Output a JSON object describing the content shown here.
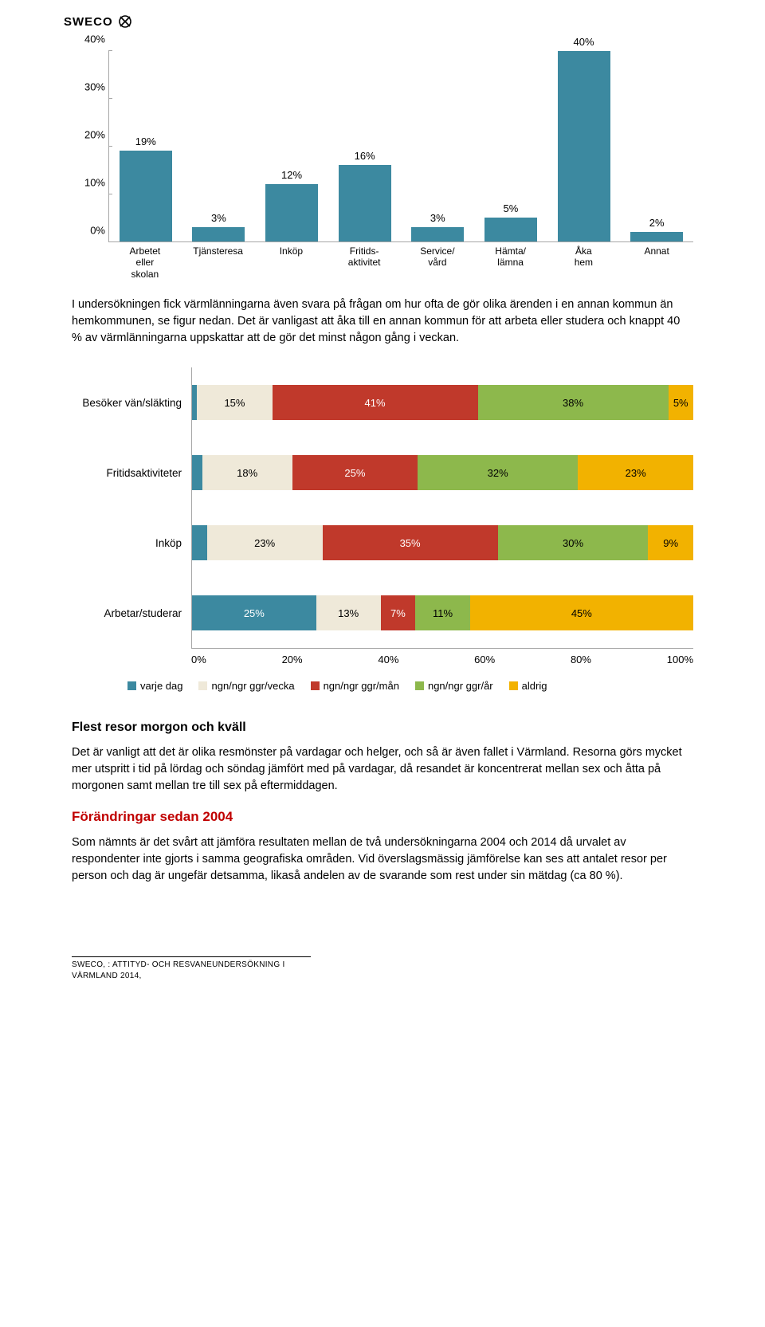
{
  "logo": {
    "text": "SWECO"
  },
  "bar_chart": {
    "type": "bar",
    "ymax": 40,
    "ytick_step": 10,
    "bar_color": "#3c89a0",
    "axis_color": "#a6a6a6",
    "label_fontsize": 13,
    "categories": [
      {
        "label": "Arbetet eller skolan",
        "value": 19,
        "display": "19%"
      },
      {
        "label": "Tjänsteresa",
        "value": 3,
        "display": "3%"
      },
      {
        "label": "Inköp",
        "value": 12,
        "display": "12%"
      },
      {
        "label": "Fritids- aktivitet",
        "value": 16,
        "display": "16%"
      },
      {
        "label": "Service/ vård",
        "value": 3,
        "display": "3%"
      },
      {
        "label": "Hämta/ lämna",
        "value": 5,
        "display": "5%"
      },
      {
        "label": "Åka hem",
        "value": 40,
        "display": "40%"
      },
      {
        "label": "Annat",
        "value": 2,
        "display": "2%"
      }
    ]
  },
  "para1": "I undersökningen fick värmlänningarna även svara på frågan om hur ofta de gör olika ärenden i en annan kommun än hemkommunen, se figur nedan. Det är vanligast att åka till en annan kommun för att arbeta eller studera och knappt 40 % av värmlänningarna uppskattar att de gör det minst någon gång i veckan.",
  "stacked_chart": {
    "type": "stacked_bar_horizontal",
    "xmax": 100,
    "xtick_step": 20,
    "xticks": [
      "0%",
      "20%",
      "40%",
      "60%",
      "80%",
      "100%"
    ],
    "colors": {
      "varje_dag": "#3c89a0",
      "ggr_vecka": "#efe9d9",
      "ggr_man": "#c0392b",
      "ggr_ar": "#8db84c",
      "aldrig": "#f2b200"
    },
    "legend": [
      {
        "key": "varje_dag",
        "label": "varje dag"
      },
      {
        "key": "ggr_vecka",
        "label": "ngn/ngr ggr/vecka"
      },
      {
        "key": "ggr_man",
        "label": "ngn/ngr ggr/mån"
      },
      {
        "key": "ggr_ar",
        "label": "ngn/ngr ggr/år"
      },
      {
        "key": "aldrig",
        "label": "aldrig"
      }
    ],
    "rows": [
      {
        "label": "Besöker vän/släkting",
        "segments": [
          {
            "key": "varje_dag",
            "value": 1,
            "display": ""
          },
          {
            "key": "ggr_vecka",
            "value": 15,
            "display": "15%"
          },
          {
            "key": "ggr_man",
            "value": 41,
            "display": "41%"
          },
          {
            "key": "ggr_ar",
            "value": 38,
            "display": "38%"
          },
          {
            "key": "aldrig",
            "value": 5,
            "display": "5%"
          }
        ]
      },
      {
        "label": "Fritidsaktiviteter",
        "segments": [
          {
            "key": "varje_dag",
            "value": 2,
            "display": ""
          },
          {
            "key": "ggr_vecka",
            "value": 18,
            "display": "18%"
          },
          {
            "key": "ggr_man",
            "value": 25,
            "display": "25%"
          },
          {
            "key": "ggr_ar",
            "value": 32,
            "display": "32%"
          },
          {
            "key": "aldrig",
            "value": 23,
            "display": "23%"
          }
        ]
      },
      {
        "label": "Inköp",
        "segments": [
          {
            "key": "varje_dag",
            "value": 3,
            "display": ""
          },
          {
            "key": "ggr_vecka",
            "value": 23,
            "display": "23%"
          },
          {
            "key": "ggr_man",
            "value": 35,
            "display": "35%"
          },
          {
            "key": "ggr_ar",
            "value": 30,
            "display": "30%"
          },
          {
            "key": "aldrig",
            "value": 9,
            "display": "9%"
          }
        ]
      },
      {
        "label": "Arbetar/studerar",
        "segments": [
          {
            "key": "varje_dag",
            "value": 25,
            "display": "25%"
          },
          {
            "key": "ggr_vecka",
            "value": 13,
            "display": "13%"
          },
          {
            "key": "ggr_man",
            "value": 7,
            "display": "7%"
          },
          {
            "key": "ggr_ar",
            "value": 11,
            "display": "11%"
          },
          {
            "key": "aldrig",
            "value": 45,
            "display": "45%"
          }
        ]
      }
    ]
  },
  "section_heading": "Flest resor morgon och kväll",
  "para2": "Det är vanligt att det är olika resmönster på vardagar och helger, och så är även fallet i Värmland. Resorna görs mycket mer utspritt i tid på lördag och söndag jämfört med på vardagar, då resandet är koncentrerat mellan sex och åtta på morgonen samt mellan tre till sex på eftermiddagen.",
  "red_heading": "Förändringar sedan 2004",
  "para3": "Som nämnts är det svårt att jämföra resultaten mellan de två undersökningarna 2004 och 2014 då urvalet av respondenter inte gjorts i samma geografiska områden. Vid överslagsmässig jämförelse kan ses att antalet resor per person och dag är ungefär detsamma, likaså andelen av de svarande som rest under sin mätdag (ca 80 %).",
  "footer_line1": "SWECO, : ATTITYD- OCH RESVANEUNDERSÖKNING I",
  "footer_line2": "VÄRMLAND 2014,"
}
